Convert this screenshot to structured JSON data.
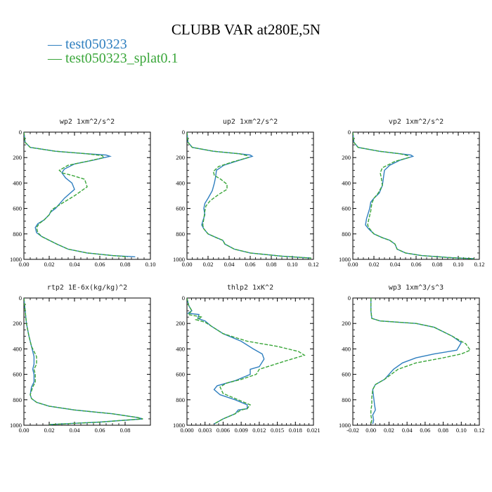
{
  "title": "CLUBB VAR at280E,5N",
  "legend": [
    {
      "label": "test050323",
      "color": "#2f7fbf",
      "dash": "solid"
    },
    {
      "label": "test050323_splat0.1",
      "color": "#3aa63a",
      "dash": "dashed"
    }
  ],
  "chart_data": [
    {
      "type": "line",
      "title": "wp2  1xm^2/s^2",
      "xlim": [
        0,
        0.1
      ],
      "xticks": [
        0,
        0.02,
        0.04,
        0.06,
        0.08,
        0.1
      ],
      "xtick_labels": [
        "0.00",
        "0.02",
        "0.04",
        "0.06",
        "0.08",
        "0.10"
      ],
      "ylim": [
        1000,
        0
      ],
      "yticks": [
        0,
        200,
        400,
        600,
        800,
        1000
      ],
      "series": [
        {
          "name": "test050323",
          "x": [
            0,
            0.001,
            0.005,
            0.025,
            0.05,
            0.065,
            0.068,
            0.055,
            0.04,
            0.032,
            0.03,
            0.033,
            0.038,
            0.04,
            0.032,
            0.025,
            0.021,
            0.02,
            0.016,
            0.011,
            0.009,
            0.01,
            0.014,
            0.02,
            0.026,
            0.035,
            0.05,
            0.07,
            0.088
          ],
          "y": [
            0,
            80,
            120,
            150,
            170,
            180,
            190,
            220,
            250,
            290,
            320,
            360,
            400,
            450,
            520,
            600,
            630,
            650,
            690,
            720,
            750,
            790,
            820,
            850,
            880,
            920,
            950,
            970,
            980
          ]
        },
        {
          "name": "test050323_splat0.1",
          "x": [
            0,
            0.001,
            0.005,
            0.025,
            0.05,
            0.062,
            0.063,
            0.05,
            0.035,
            0.028,
            0.03,
            0.038,
            0.048,
            0.05,
            0.04,
            0.03,
            0.022,
            0.02,
            0.016,
            0.012,
            0.01,
            0.011,
            0.014,
            0.02,
            0.026,
            0.035,
            0.05,
            0.07,
            0.082
          ],
          "y": [
            0,
            80,
            120,
            150,
            170,
            185,
            200,
            230,
            260,
            300,
            320,
            340,
            370,
            430,
            500,
            560,
            610,
            650,
            690,
            720,
            750,
            790,
            820,
            850,
            880,
            920,
            950,
            970,
            980
          ]
        }
      ]
    },
    {
      "type": "line",
      "title": "up2  1xm^2/s^2",
      "xlim": [
        0,
        0.12
      ],
      "xticks": [
        0,
        0.02,
        0.04,
        0.06,
        0.08,
        0.1,
        0.12
      ],
      "xtick_labels": [
        "0.00",
        "0.02",
        "0.04",
        "0.06",
        "0.08",
        "0.10",
        "0.12"
      ],
      "ylim": [
        1000,
        0
      ],
      "yticks": [
        0,
        200,
        400,
        600,
        800,
        1000
      ],
      "series": [
        {
          "name": "test050323",
          "x": [
            0,
            0.001,
            0.005,
            0.025,
            0.05,
            0.06,
            0.062,
            0.05,
            0.035,
            0.028,
            0.027,
            0.026,
            0.024,
            0.02,
            0.017,
            0.016,
            0.017,
            0.015,
            0.014,
            0.016,
            0.02,
            0.028,
            0.034,
            0.036,
            0.045,
            0.06,
            0.09,
            0.118
          ],
          "y": [
            0,
            80,
            120,
            150,
            170,
            180,
            190,
            220,
            260,
            300,
            360,
            400,
            460,
            520,
            560,
            600,
            650,
            700,
            730,
            760,
            800,
            830,
            850,
            880,
            920,
            950,
            975,
            990
          ]
        },
        {
          "name": "test050323_splat0.1",
          "x": [
            0,
            0.001,
            0.005,
            0.025,
            0.05,
            0.057,
            0.058,
            0.045,
            0.03,
            0.025,
            0.026,
            0.032,
            0.038,
            0.038,
            0.03,
            0.022,
            0.018,
            0.017,
            0.016,
            0.015,
            0.016,
            0.02,
            0.028,
            0.034,
            0.036,
            0.045,
            0.06,
            0.09,
            0.118
          ],
          "y": [
            0,
            80,
            120,
            150,
            170,
            185,
            200,
            230,
            270,
            310,
            340,
            370,
            410,
            450,
            490,
            540,
            580,
            620,
            680,
            730,
            760,
            800,
            830,
            850,
            880,
            920,
            950,
            975,
            990
          ]
        }
      ]
    },
    {
      "type": "line",
      "title": "vp2  1xm^2/s^2",
      "xlim": [
        0,
        0.12
      ],
      "xticks": [
        0,
        0.02,
        0.04,
        0.06,
        0.08,
        0.1,
        0.12
      ],
      "xtick_labels": [
        "0.00",
        "0.02",
        "0.04",
        "0.06",
        "0.08",
        "0.10",
        "0.12"
      ],
      "ylim": [
        1000,
        0
      ],
      "yticks": [
        0,
        200,
        400,
        600,
        800,
        1000
      ],
      "series": [
        {
          "name": "test050323",
          "x": [
            0,
            0.001,
            0.005,
            0.025,
            0.045,
            0.055,
            0.057,
            0.045,
            0.035,
            0.03,
            0.029,
            0.028,
            0.025,
            0.02,
            0.017,
            0.016,
            0.013,
            0.012,
            0.015,
            0.02,
            0.028,
            0.035,
            0.04,
            0.042,
            0.05,
            0.065,
            0.09,
            0.115
          ],
          "y": [
            0,
            80,
            120,
            150,
            170,
            180,
            190,
            220,
            260,
            300,
            360,
            420,
            480,
            520,
            550,
            600,
            680,
            730,
            760,
            800,
            830,
            850,
            880,
            920,
            950,
            970,
            985,
            995
          ]
        },
        {
          "name": "test050323_splat0.1",
          "x": [
            0,
            0.001,
            0.005,
            0.025,
            0.045,
            0.052,
            0.053,
            0.04,
            0.028,
            0.026,
            0.027,
            0.028,
            0.024,
            0.02,
            0.018,
            0.017,
            0.015,
            0.014,
            0.016,
            0.02,
            0.028,
            0.035,
            0.04,
            0.042,
            0.05,
            0.065,
            0.09,
            0.115
          ],
          "y": [
            0,
            80,
            120,
            150,
            170,
            185,
            200,
            230,
            280,
            320,
            360,
            420,
            480,
            520,
            560,
            620,
            690,
            730,
            760,
            800,
            830,
            850,
            880,
            920,
            950,
            970,
            985,
            995
          ]
        }
      ]
    },
    {
      "type": "line",
      "title": "rtp2  1E-6x(kg/kg)^2",
      "xlim": [
        0,
        0.1
      ],
      "xticks": [
        0,
        0.02,
        0.04,
        0.06,
        0.08
      ],
      "xtick_labels": [
        "0.00",
        "0.02",
        "0.04",
        "0.06",
        "0.08"
      ],
      "ylim": [
        1000,
        0
      ],
      "yticks": [
        0,
        200,
        400,
        600,
        800,
        1000
      ],
      "series": [
        {
          "name": "test050323",
          "x": [
            0,
            0.001,
            0.002,
            0.004,
            0.006,
            0.007,
            0.008,
            0.008,
            0.007,
            0.008,
            0.008,
            0.006,
            0.005,
            0.006,
            0.01,
            0.02,
            0.04,
            0.07,
            0.09,
            0.094,
            0.06,
            0.02
          ],
          "y": [
            0,
            100,
            200,
            300,
            380,
            420,
            460,
            520,
            560,
            600,
            660,
            700,
            760,
            790,
            820,
            850,
            880,
            910,
            940,
            950,
            975,
            995
          ]
        },
        {
          "name": "test050323_splat0.1",
          "x": [
            0,
            0.001,
            0.002,
            0.004,
            0.006,
            0.008,
            0.01,
            0.01,
            0.008,
            0.009,
            0.009,
            0.007,
            0.005,
            0.006,
            0.01,
            0.02,
            0.04,
            0.07,
            0.09,
            0.094,
            0.06,
            0.02
          ],
          "y": [
            0,
            100,
            200,
            300,
            380,
            420,
            460,
            520,
            560,
            600,
            660,
            700,
            760,
            790,
            820,
            850,
            880,
            910,
            940,
            950,
            975,
            995
          ]
        }
      ]
    },
    {
      "type": "line",
      "title": "thlp2  1xK^2",
      "xlim": [
        0,
        0.021
      ],
      "xticks": [
        0,
        0.003,
        0.006,
        0.009,
        0.012,
        0.015,
        0.018,
        0.021
      ],
      "xtick_labels": [
        "0.000",
        "0.003",
        "0.006",
        "0.009",
        "0.012",
        "0.015",
        "0.018",
        "0.021"
      ],
      "ylim": [
        1000,
        0
      ],
      "yticks": [
        0,
        200,
        400,
        600,
        800,
        1000
      ],
      "series": [
        {
          "name": "test050323",
          "x": [
            0,
            0.0003,
            0.0008,
            0.0002,
            0.002,
            0.0018,
            0.003,
            0.004,
            0.006,
            0.009,
            0.011,
            0.0125,
            0.0128,
            0.012,
            0.0105,
            0.0105,
            0.008,
            0.005,
            0.0045,
            0.0055,
            0.008,
            0.01,
            0.01,
            0.0085,
            0.008,
            0.006,
            0.0045
          ],
          "y": [
            0,
            60,
            100,
            120,
            130,
            160,
            180,
            220,
            280,
            340,
            400,
            440,
            480,
            540,
            560,
            600,
            650,
            690,
            720,
            760,
            800,
            840,
            870,
            880,
            910,
            950,
            990
          ]
        },
        {
          "name": "test050323_splat0.1",
          "x": [
            0,
            0.0003,
            0.0008,
            0.0002,
            0.0025,
            0.0015,
            0.003,
            0.004,
            0.006,
            0.01,
            0.015,
            0.0185,
            0.0195,
            0.016,
            0.012,
            0.0115,
            0.009,
            0.0065,
            0.0055,
            0.006,
            0.008,
            0.0105,
            0.01,
            0.009,
            0.008,
            0.006,
            0.0045
          ],
          "y": [
            0,
            60,
            100,
            130,
            150,
            170,
            190,
            220,
            280,
            340,
            380,
            420,
            450,
            500,
            560,
            600,
            640,
            670,
            700,
            750,
            790,
            840,
            870,
            880,
            910,
            950,
            990
          ]
        }
      ]
    },
    {
      "type": "line",
      "title": "wp3  1xm^3/s^3",
      "xlim": [
        -0.02,
        0.12
      ],
      "xticks": [
        -0.02,
        0,
        0.02,
        0.04,
        0.06,
        0.08,
        0.1,
        0.12
      ],
      "xtick_labels": [
        "-0.02",
        "0.00",
        "0.02",
        "0.04",
        "0.06",
        "0.08",
        "0.10",
        "0.12"
      ],
      "ylim": [
        1000,
        0
      ],
      "yticks": [
        0,
        200,
        400,
        600,
        800,
        1000
      ],
      "series": [
        {
          "name": "test050323",
          "x": [
            0,
            0,
            0.001,
            0.01,
            0.03,
            0.05,
            0.07,
            0.09,
            0.1,
            0.095,
            0.07,
            0.05,
            0.035,
            0.025,
            0.015,
            0.005,
            0.002,
            0.003,
            0.004,
            0.005,
            0.002,
            0.003,
            0.002
          ],
          "y": [
            0,
            100,
            160,
            180,
            190,
            200,
            230,
            300,
            350,
            410,
            440,
            470,
            510,
            560,
            640,
            680,
            720,
            780,
            840,
            880,
            920,
            960,
            990
          ]
        },
        {
          "name": "test050323_splat0.1",
          "x": [
            0,
            0,
            0.001,
            0.01,
            0.03,
            0.05,
            0.07,
            0.09,
            0.105,
            0.11,
            0.1,
            0.08,
            0.05,
            0.03,
            0.015,
            0.005,
            0.002,
            0.001,
            0.001,
            0.0,
            0.0,
            0.001,
            0.0
          ],
          "y": [
            0,
            100,
            160,
            180,
            190,
            200,
            230,
            300,
            360,
            410,
            440,
            470,
            510,
            560,
            640,
            680,
            720,
            780,
            840,
            880,
            920,
            960,
            990
          ]
        }
      ]
    }
  ]
}
